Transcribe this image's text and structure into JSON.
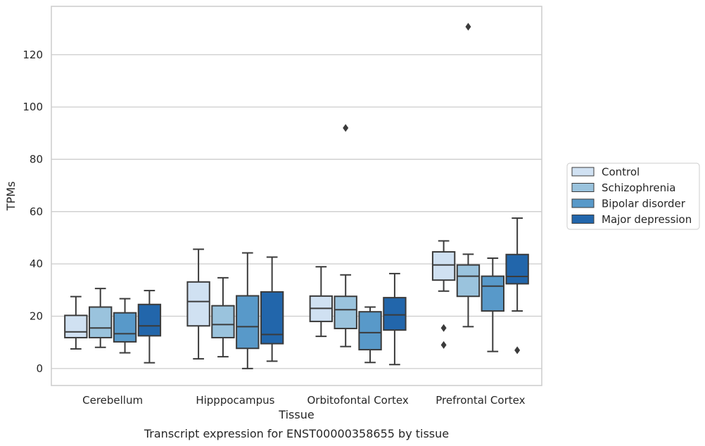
{
  "chart_data": {
    "type": "box",
    "title": "Transcript expression for ENST00000358655 by tissue",
    "xlabel": "Tissue",
    "ylabel": "TPMs",
    "ylim": [
      -6.5,
      138.5
    ],
    "yticks": [
      0,
      20,
      40,
      60,
      80,
      100,
      120
    ],
    "grid": true,
    "legend_position": "right",
    "categories": [
      "Cerebellum",
      "Hipppocampus",
      "Orbitofontal Cortex",
      "Prefrontal Cortex"
    ],
    "series": [
      {
        "name": "Control",
        "color": "#d0e1f2",
        "boxes": [
          {
            "whislo": 7.5,
            "q1": 11.8,
            "med": 14.0,
            "q3": 20.3,
            "whishi": 27.5,
            "fliers": []
          },
          {
            "whislo": 3.7,
            "q1": 16.3,
            "med": 25.6,
            "q3": 33.1,
            "whishi": 45.6,
            "fliers": []
          },
          {
            "whislo": 12.3,
            "q1": 18.0,
            "med": 23.0,
            "q3": 27.7,
            "whishi": 38.9,
            "fliers": []
          },
          {
            "whislo": 29.6,
            "q1": 33.8,
            "med": 39.6,
            "q3": 44.6,
            "whishi": 48.8,
            "fliers": [
              15.5,
              9.0
            ]
          }
        ]
      },
      {
        "name": "Schizophrenia",
        "color": "#9ac3dd",
        "boxes": [
          {
            "whislo": 8.1,
            "q1": 11.8,
            "med": 15.5,
            "q3": 23.5,
            "whishi": 30.6,
            "fliers": []
          },
          {
            "whislo": 4.5,
            "q1": 11.8,
            "med": 16.8,
            "q3": 24.0,
            "whishi": 34.7,
            "fliers": []
          },
          {
            "whislo": 8.4,
            "q1": 15.3,
            "med": 22.5,
            "q3": 27.6,
            "whishi": 35.8,
            "fliers": [
              92.0
            ]
          },
          {
            "whislo": 16.0,
            "q1": 27.6,
            "med": 35.3,
            "q3": 39.6,
            "whishi": 43.7,
            "fliers": [
              130.7
            ]
          }
        ]
      },
      {
        "name": "Bipolar disorder",
        "color": "#5899c9",
        "boxes": [
          {
            "whislo": 6.0,
            "q1": 10.2,
            "med": 13.3,
            "q3": 21.3,
            "whishi": 26.7,
            "fliers": []
          },
          {
            "whislo": 0.0,
            "q1": 7.7,
            "med": 16.0,
            "q3": 27.8,
            "whishi": 44.2,
            "fliers": []
          },
          {
            "whislo": 2.3,
            "q1": 7.2,
            "med": 13.7,
            "q3": 21.7,
            "whishi": 23.5,
            "fliers": []
          },
          {
            "whislo": 6.5,
            "q1": 22.0,
            "med": 31.5,
            "q3": 35.3,
            "whishi": 42.2,
            "fliers": []
          }
        ]
      },
      {
        "name": "Major depression",
        "color": "#2266ab",
        "boxes": [
          {
            "whislo": 2.2,
            "q1": 12.5,
            "med": 16.3,
            "q3": 24.5,
            "whishi": 29.8,
            "fliers": []
          },
          {
            "whislo": 2.8,
            "q1": 9.5,
            "med": 13.0,
            "q3": 29.3,
            "whishi": 42.6,
            "fliers": []
          },
          {
            "whislo": 1.5,
            "q1": 14.7,
            "med": 20.5,
            "q3": 27.1,
            "whishi": 36.3,
            "fliers": []
          },
          {
            "whislo": 22.0,
            "q1": 32.4,
            "med": 35.2,
            "q3": 43.6,
            "whishi": 57.5,
            "fliers": [
              7.0
            ]
          }
        ]
      }
    ]
  }
}
